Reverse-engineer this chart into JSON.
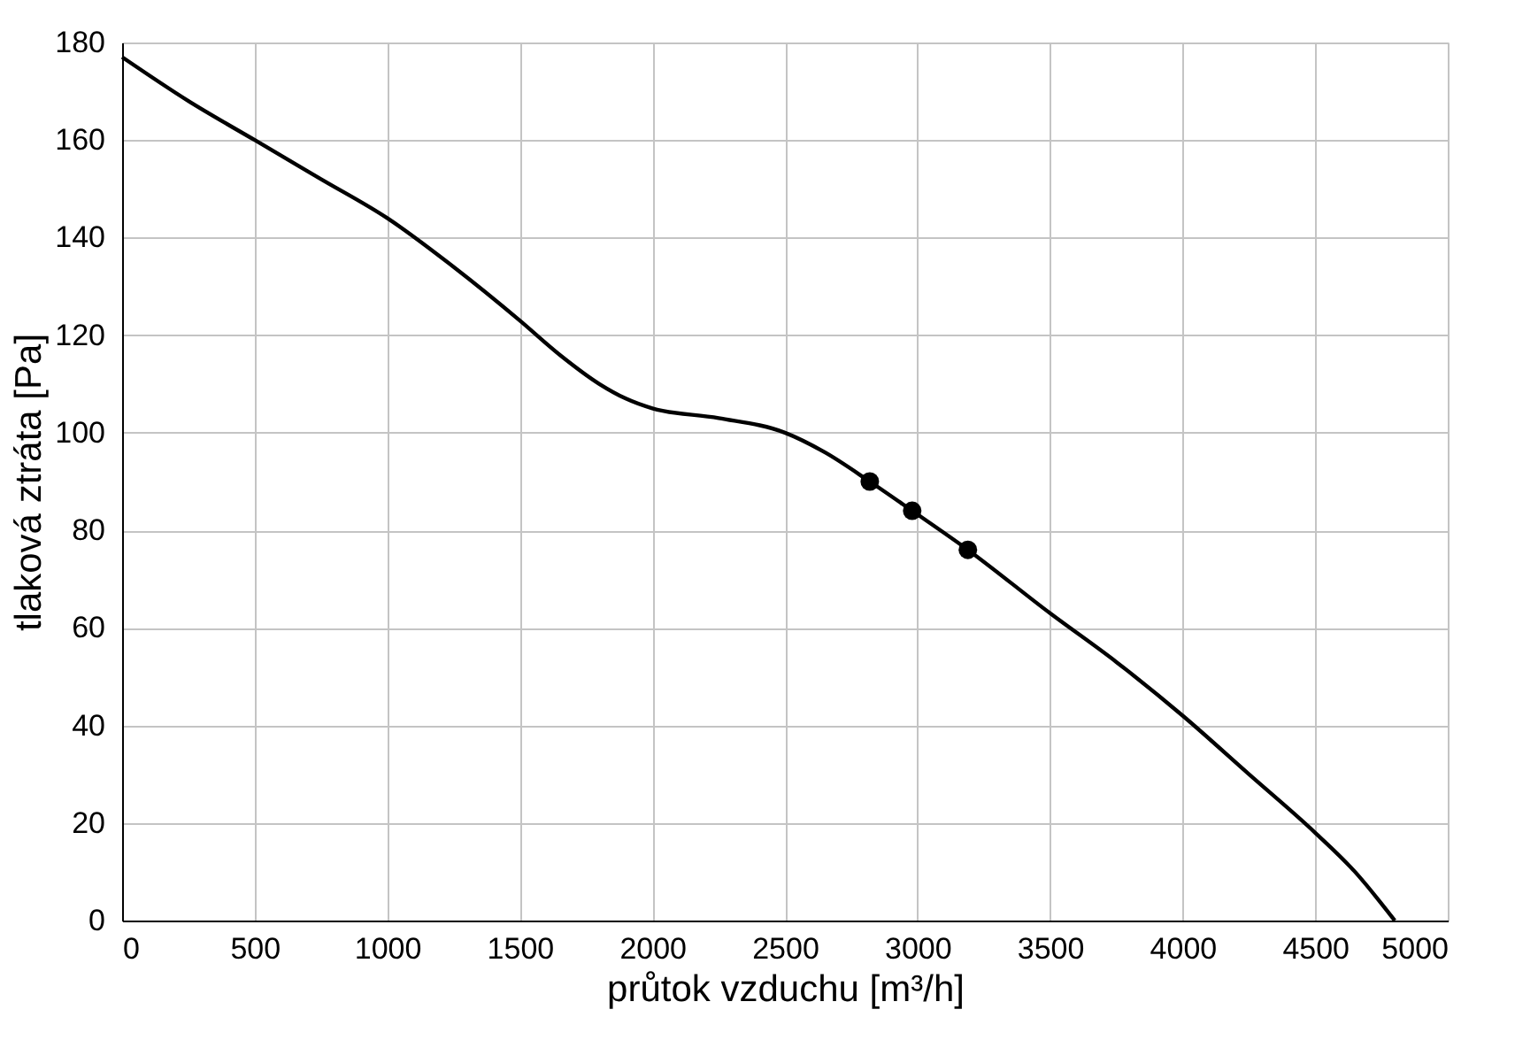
{
  "chart_data": {
    "type": "line",
    "xlabel": "průtok vzduchu [m³/h]",
    "ylabel": "tlaková ztráta [Pa]",
    "xlim": [
      0,
      5000
    ],
    "xticks": [
      0,
      500,
      1000,
      1500,
      2000,
      2500,
      3000,
      3500,
      4000,
      4500,
      5000
    ],
    "ylim": [
      0,
      180
    ],
    "yticks": [
      0,
      20,
      40,
      60,
      80,
      100,
      120,
      140,
      160,
      180
    ],
    "grid": true,
    "series": [
      {
        "color": "#000000",
        "x": [
          0,
          250,
          500,
          750,
          1000,
          1250,
          1500,
          1650,
          1800,
          1900,
          2000,
          2250,
          2500,
          2650,
          2820,
          2980,
          3190,
          3500,
          3750,
          4000,
          4250,
          4500,
          4650,
          4800
        ],
        "values": [
          177,
          168,
          160,
          152,
          144,
          134,
          123,
          116,
          110,
          107,
          105,
          103,
          100,
          96,
          90,
          84,
          76,
          63,
          53,
          42,
          30,
          18,
          10,
          0
        ]
      },
      {
        "type": "scatter",
        "color": "#000000",
        "marker": "circle",
        "x": [
          2820,
          2980,
          3190
        ],
        "values": [
          90,
          84,
          76
        ]
      }
    ]
  }
}
